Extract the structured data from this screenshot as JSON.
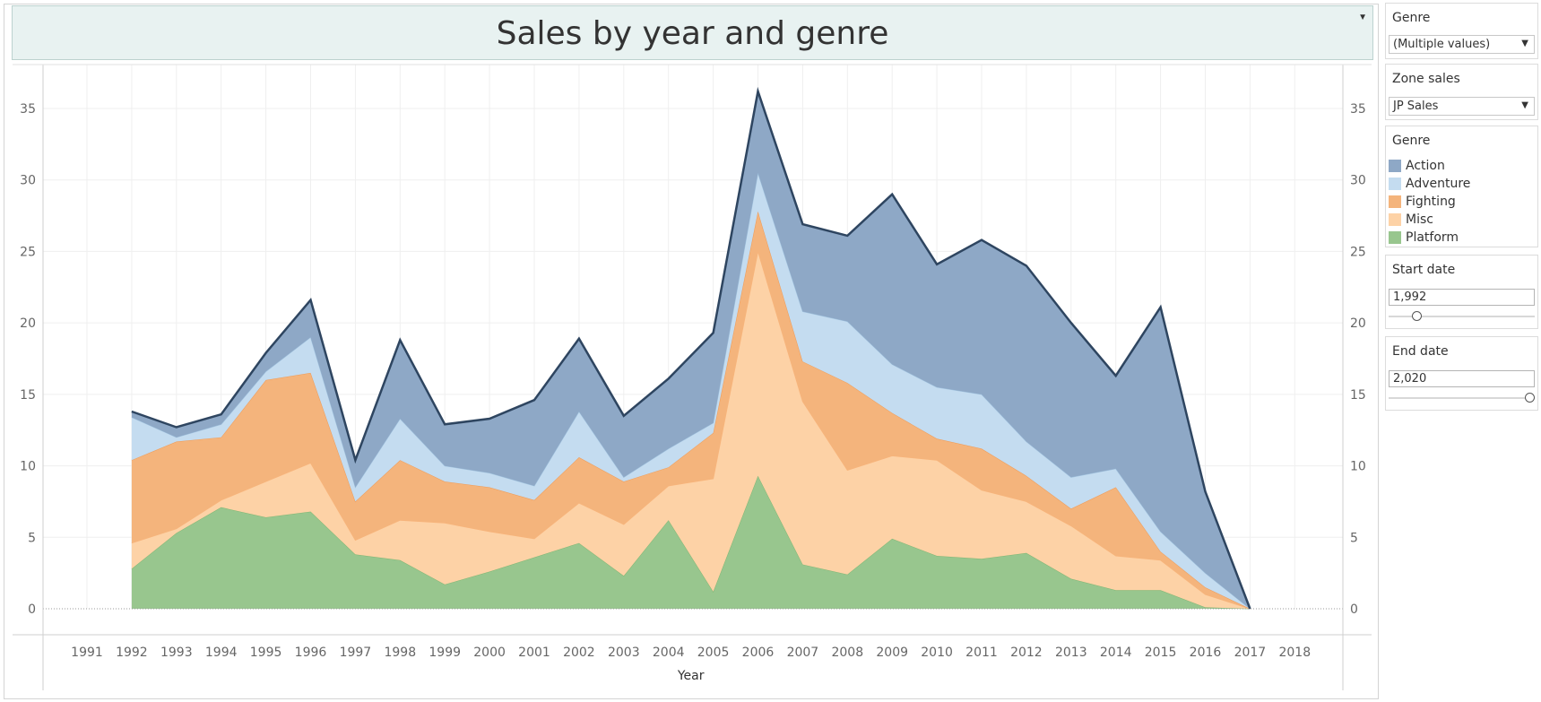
{
  "title": "Sales by year and genre",
  "filters": {
    "genre_filter": {
      "label": "Genre",
      "value": "(Multiple values)"
    },
    "zone_filter": {
      "label": "Zone sales",
      "value": "JP Sales"
    },
    "start_date": {
      "label": "Start date",
      "value": "1,992",
      "fraction": 0.17
    },
    "end_date": {
      "label": "End date",
      "value": "2,020",
      "fraction": 1.0
    }
  },
  "legend": {
    "title": "Genre",
    "items": [
      {
        "label": "Action",
        "color": "#8ea8c6"
      },
      {
        "label": "Adventure",
        "color": "#c4dcf0"
      },
      {
        "label": "Fighting",
        "color": "#f4b47c"
      },
      {
        "label": "Misc",
        "color": "#fdd2a6"
      },
      {
        "label": "Platform",
        "color": "#98c68e"
      }
    ]
  },
  "chart_data": {
    "type": "area",
    "stacked": true,
    "xlabel": "Year",
    "ylabel": "",
    "xlim": [
      1990,
      2019
    ],
    "ylim": [
      0,
      37
    ],
    "x_ticks": [
      1991,
      1992,
      1993,
      1994,
      1995,
      1996,
      1997,
      1998,
      1999,
      2000,
      2001,
      2002,
      2003,
      2004,
      2005,
      2006,
      2007,
      2008,
      2009,
      2010,
      2011,
      2012,
      2013,
      2014,
      2015,
      2016,
      2017,
      2018
    ],
    "y_ticks": [
      0,
      5,
      10,
      15,
      20,
      25,
      30,
      35
    ],
    "x": [
      1992,
      1993,
      1994,
      1995,
      1996,
      1997,
      1998,
      1999,
      2000,
      2001,
      2002,
      2003,
      2004,
      2005,
      2006,
      2007,
      2008,
      2009,
      2010,
      2011,
      2012,
      2013,
      2014,
      2015,
      2016,
      2017
    ],
    "series": [
      {
        "name": "Platform",
        "color": "#98c68e",
        "stroke": "#7fb573",
        "values": [
          2.8,
          5.3,
          7.1,
          6.4,
          6.8,
          3.8,
          3.4,
          1.7,
          2.6,
          3.6,
          4.6,
          2.3,
          6.2,
          1.2,
          9.3,
          3.1,
          2.4,
          4.9,
          3.7,
          3.5,
          3.9,
          2.1,
          1.3,
          1.3,
          0.1,
          0
        ]
      },
      {
        "name": "Misc",
        "color": "#fdd2a6",
        "stroke": "#f9b47a",
        "values": [
          1.8,
          0.3,
          0.5,
          2.5,
          3.4,
          1.0,
          2.8,
          4.3,
          2.8,
          1.3,
          2.8,
          3.6,
          2.4,
          7.9,
          15.7,
          11.4,
          7.3,
          5.8,
          6.7,
          4.8,
          3.6,
          3.7,
          2.4,
          2.1,
          0.9,
          0
        ]
      },
      {
        "name": "Fighting",
        "color": "#f4b47c",
        "stroke": "#ef9a55",
        "values": [
          5.8,
          6.1,
          4.4,
          7.1,
          6.3,
          2.7,
          4.2,
          2.9,
          3.1,
          2.7,
          3.2,
          3.0,
          1.3,
          3.2,
          2.8,
          2.8,
          6.1,
          3.0,
          1.5,
          2.9,
          1.8,
          1.2,
          4.8,
          0.6,
          0.5,
          0
        ]
      },
      {
        "name": "Adventure",
        "color": "#c4dcf0",
        "stroke": "#9ec0dd",
        "values": [
          3.0,
          0.3,
          0.9,
          0.6,
          2.5,
          1.0,
          2.9,
          1.1,
          1.0,
          1.0,
          3.2,
          0.3,
          1.3,
          0.7,
          2.7,
          3.5,
          4.3,
          3.4,
          3.6,
          3.8,
          2.4,
          2.2,
          1.3,
          1.4,
          1.0,
          0
        ]
      },
      {
        "name": "Action",
        "color": "#8ea8c6",
        "stroke": "#6f8fb5",
        "values": [
          0.4,
          0.7,
          0.7,
          1.3,
          2.6,
          1.9,
          5.5,
          2.9,
          3.8,
          6.0,
          5.1,
          4.3,
          4.9,
          6.3,
          5.7,
          6.1,
          6.0,
          11.9,
          8.6,
          10.8,
          12.3,
          10.8,
          6.5,
          15.7,
          5.7,
          0
        ]
      }
    ],
    "totals": [
      13.8,
      12.7,
      13.6,
      17.9,
      21.6,
      10.4,
      18.8,
      12.9,
      13.3,
      14.6,
      18.9,
      13.5,
      16.1,
      19.3,
      36.2,
      26.9,
      26.1,
      29.0,
      24.1,
      25.8,
      24.0,
      20.0,
      16.3,
      21.1,
      8.2,
      0
    ]
  }
}
